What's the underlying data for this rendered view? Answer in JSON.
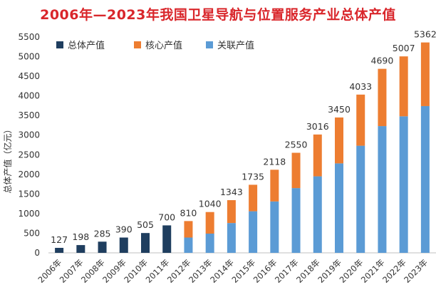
{
  "chart_data": {
    "type": "bar",
    "stacked": true,
    "title": "2006年—2023年我国卫星导航与位置服务产业总体产值",
    "xlabel": "",
    "ylabel": "总体产值（亿元）",
    "ylim": [
      0,
      5500
    ],
    "yticks": [
      0,
      500,
      1000,
      1500,
      2000,
      2500,
      3000,
      3500,
      4000,
      4500,
      5000,
      5500
    ],
    "categories": [
      "2006年",
      "2007年",
      "2008年",
      "2009年",
      "2010年",
      "2011年",
      "2012年",
      "2013年",
      "2014年",
      "2015年",
      "2016年",
      "2017年",
      "2018年",
      "2019年",
      "2020年",
      "2021年",
      "2022年",
      "2023年"
    ],
    "totals": [
      127,
      198,
      285,
      390,
      505,
      700,
      810,
      1040,
      1343,
      1735,
      2118,
      2550,
      3016,
      3450,
      4033,
      4690,
      5007,
      5362
    ],
    "series": [
      {
        "name": "总体产值",
        "color": "#1f3e5f",
        "values": [
          127,
          198,
          285,
          390,
          505,
          700,
          null,
          null,
          null,
          null,
          null,
          null,
          null,
          null,
          null,
          null,
          null,
          null
        ]
      },
      {
        "name": "关联产值",
        "color": "#5b9bd5",
        "values": [
          null,
          null,
          null,
          null,
          null,
          null,
          390,
          490,
          760,
          1060,
          1310,
          1650,
          1950,
          2280,
          2730,
          3230,
          3480,
          3740
        ]
      },
      {
        "name": "核心产值",
        "color": "#ed7d31",
        "values": [
          null,
          null,
          null,
          null,
          null,
          null,
          420,
          550,
          583,
          675,
          808,
          900,
          1066,
          1170,
          1303,
          1460,
          1527,
          1622
        ]
      }
    ],
    "legend": [
      {
        "name": "总体产值",
        "color": "#1f3e5f"
      },
      {
        "name": "核心产值",
        "color": "#ed7d31"
      },
      {
        "name": "关联产值",
        "color": "#5b9bd5"
      }
    ],
    "legend_position": "top-left",
    "grid": false
  }
}
